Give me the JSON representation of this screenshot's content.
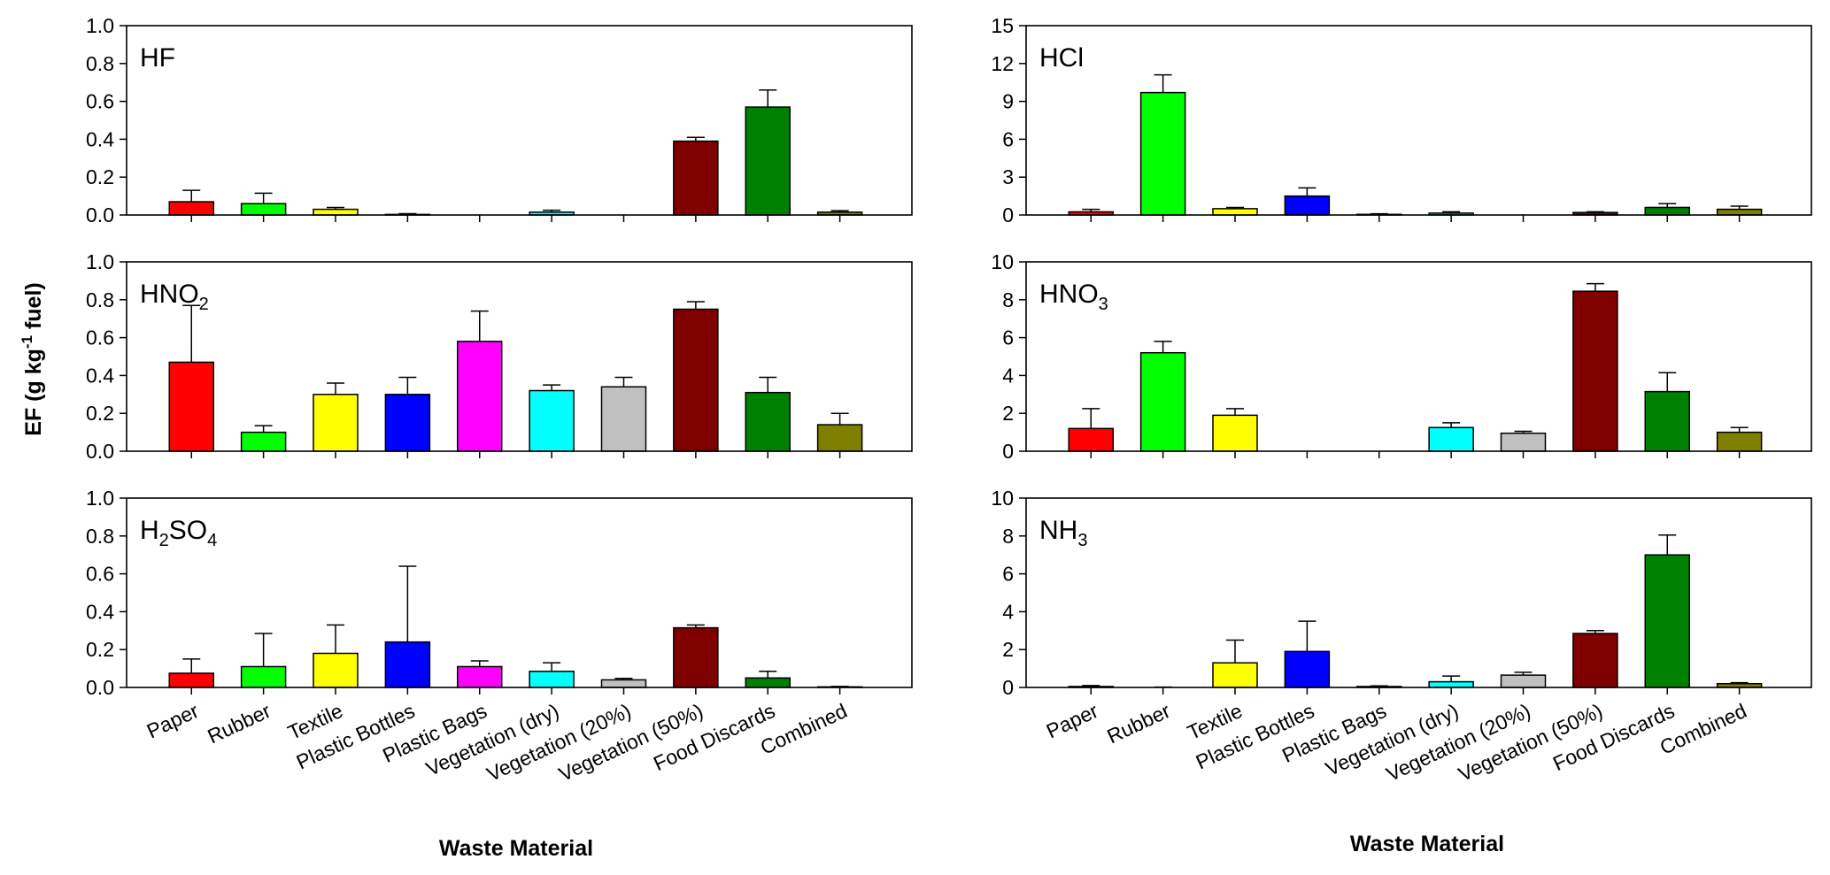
{
  "figure": {
    "ylabel_main": "EF (g kg",
    "ylabel_sup": "-1",
    "ylabel_tail": " fuel)",
    "xlabel_left": "Waste Material",
    "xlabel_right": "Waste Material"
  },
  "categories": [
    "Paper",
    "Rubber",
    "Textile",
    "Plastic Bottles",
    "Plastic Bags",
    "Vegetation (dry)",
    "Vegetation (20%)",
    "Vegetation (50%)",
    "Food Discards",
    "Combined"
  ],
  "colors": [
    "#ff0000",
    "#00ff00",
    "#ffff00",
    "#0000ff",
    "#ff00ff",
    "#00ffff",
    "#c0c0c0",
    "#800000",
    "#008000",
    "#808000"
  ],
  "chart_data": [
    {
      "type": "bar",
      "label_base": "HF",
      "label_sub": "",
      "label_mid": "",
      "label_sub2": "",
      "ylim": [
        0,
        1.0
      ],
      "yticks": [
        "0.0",
        "0.2",
        "0.4",
        "0.6",
        "0.8",
        "1.0"
      ],
      "values": [
        0.07,
        0.06,
        0.03,
        0.003,
        0.0,
        0.015,
        0.0,
        0.39,
        0.57,
        0.015
      ],
      "errors": [
        0.06,
        0.055,
        0.01,
        0.004,
        0.0,
        0.01,
        0.0,
        0.02,
        0.09,
        0.008
      ]
    },
    {
      "type": "bar",
      "label_base": "HCl",
      "label_sub": "",
      "label_mid": "",
      "label_sub2": "",
      "ylim": [
        0,
        15
      ],
      "yticks": [
        "0",
        "3",
        "6",
        "9",
        "12",
        "15"
      ],
      "values": [
        0.25,
        9.7,
        0.5,
        1.5,
        0.05,
        0.15,
        0.0,
        0.2,
        0.6,
        0.45
      ],
      "errors": [
        0.2,
        1.4,
        0.1,
        0.65,
        0.05,
        0.1,
        0.0,
        0.05,
        0.3,
        0.25
      ]
    },
    {
      "type": "bar",
      "label_base": "HNO",
      "label_sub": "2",
      "label_mid": "",
      "label_sub2": "",
      "ylim": [
        0,
        1.0
      ],
      "yticks": [
        "0.0",
        "0.2",
        "0.4",
        "0.6",
        "0.8",
        "1.0"
      ],
      "values": [
        0.47,
        0.1,
        0.3,
        0.3,
        0.58,
        0.32,
        0.34,
        0.75,
        0.31,
        0.14
      ],
      "errors": [
        0.3,
        0.035,
        0.06,
        0.09,
        0.16,
        0.03,
        0.05,
        0.04,
        0.08,
        0.06
      ]
    },
    {
      "type": "bar",
      "label_base": "HNO",
      "label_sub": "3",
      "label_mid": "",
      "label_sub2": "",
      "ylim": [
        0,
        10
      ],
      "yticks": [
        "0",
        "2",
        "4",
        "6",
        "8",
        "10"
      ],
      "values": [
        1.2,
        5.2,
        1.9,
        0.0,
        0.0,
        1.25,
        0.95,
        8.45,
        3.15,
        1.0
      ],
      "errors": [
        1.05,
        0.6,
        0.35,
        0.0,
        0.0,
        0.25,
        0.1,
        0.4,
        1.0,
        0.25
      ]
    },
    {
      "type": "bar",
      "label_base": "H",
      "label_sub": "2",
      "label_mid": "SO",
      "label_sub2": "4",
      "ylim": [
        0,
        1.0
      ],
      "yticks": [
        "0.0",
        "0.2",
        "0.4",
        "0.6",
        "0.8",
        "1.0"
      ],
      "values": [
        0.075,
        0.11,
        0.18,
        0.24,
        0.11,
        0.085,
        0.04,
        0.315,
        0.05,
        0.003
      ],
      "errors": [
        0.075,
        0.175,
        0.15,
        0.4,
        0.03,
        0.045,
        0.008,
        0.015,
        0.035,
        0.002
      ]
    },
    {
      "type": "bar",
      "label_base": "NH",
      "label_sub": "3",
      "label_mid": "",
      "label_sub2": "",
      "ylim": [
        0,
        10
      ],
      "yticks": [
        "0",
        "2",
        "4",
        "6",
        "8",
        "10"
      ],
      "values": [
        0.05,
        0.0,
        1.3,
        1.9,
        0.05,
        0.3,
        0.65,
        2.85,
        7.0,
        0.2
      ],
      "errors": [
        0.05,
        0.02,
        1.2,
        1.6,
        0.03,
        0.3,
        0.15,
        0.15,
        1.05,
        0.05
      ]
    }
  ]
}
